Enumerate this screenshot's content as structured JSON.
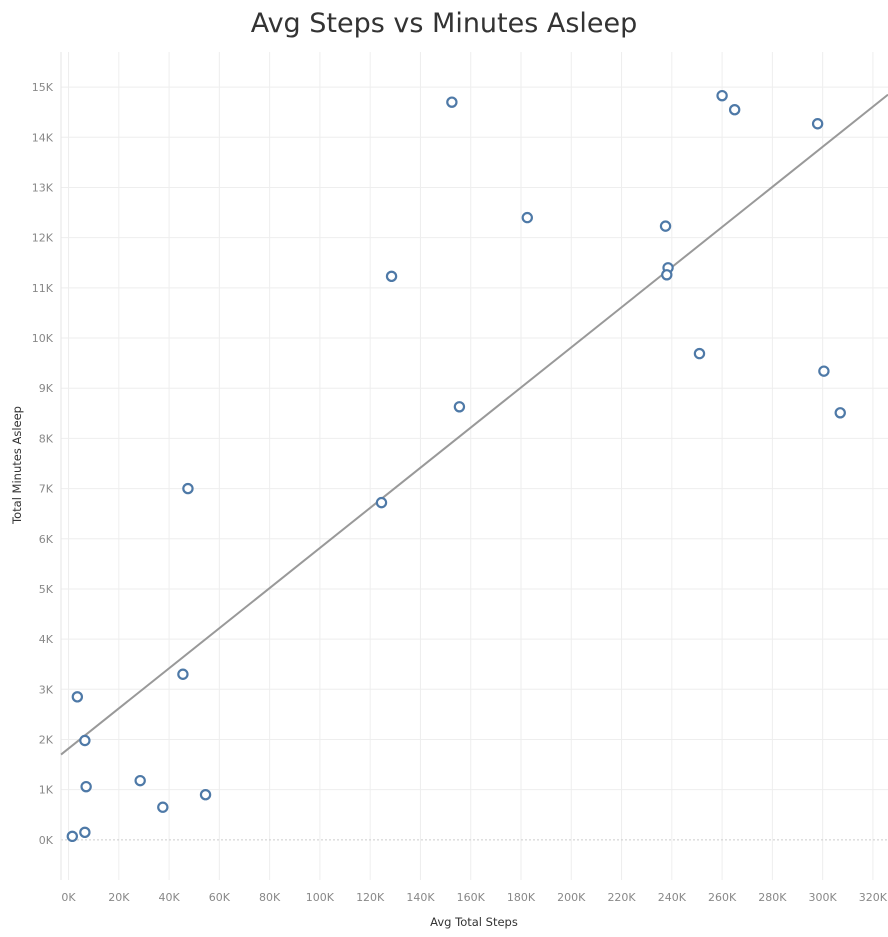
{
  "chart_data": {
    "type": "scatter",
    "title": "Avg Steps vs Minutes Asleep",
    "xlabel": "Avg Total Steps",
    "ylabel": "Total Minutes Asleep",
    "xlim": [
      -3000,
      326000
    ],
    "ylim": [
      -800,
      15700
    ],
    "x_ticks": [
      0,
      20000,
      40000,
      60000,
      80000,
      100000,
      120000,
      140000,
      160000,
      180000,
      200000,
      220000,
      240000,
      260000,
      280000,
      300000,
      320000
    ],
    "x_tick_labels": [
      "0K",
      "20K",
      "40K",
      "60K",
      "80K",
      "100K",
      "120K",
      "140K",
      "160K",
      "180K",
      "200K",
      "220K",
      "240K",
      "260K",
      "280K",
      "300K",
      "320K"
    ],
    "y_ticks": [
      0,
      1000,
      2000,
      3000,
      4000,
      5000,
      6000,
      7000,
      8000,
      9000,
      10000,
      11000,
      12000,
      13000,
      14000,
      15000
    ],
    "y_tick_labels": [
      "0K",
      "1K",
      "2K",
      "3K",
      "4K",
      "5K",
      "6K",
      "7K",
      "8K",
      "9K",
      "10K",
      "11K",
      "12K",
      "13K",
      "14K",
      "15K"
    ],
    "grid": true,
    "trend_line": {
      "x": [
        -3000,
        326000
      ],
      "y": [
        1700,
        14850
      ]
    },
    "points": [
      {
        "x": 1500,
        "y": 70
      },
      {
        "x": 6500,
        "y": 150
      },
      {
        "x": 3500,
        "y": 2850
      },
      {
        "x": 6500,
        "y": 1980
      },
      {
        "x": 7000,
        "y": 1060
      },
      {
        "x": 28500,
        "y": 1180
      },
      {
        "x": 37500,
        "y": 650
      },
      {
        "x": 45500,
        "y": 3300
      },
      {
        "x": 47500,
        "y": 7000
      },
      {
        "x": 54500,
        "y": 900
      },
      {
        "x": 124500,
        "y": 6720
      },
      {
        "x": 128500,
        "y": 11230
      },
      {
        "x": 152500,
        "y": 14700
      },
      {
        "x": 155500,
        "y": 8630
      },
      {
        "x": 182500,
        "y": 12400
      },
      {
        "x": 237500,
        "y": 12230
      },
      {
        "x": 238500,
        "y": 11400
      },
      {
        "x": 238000,
        "y": 11260
      },
      {
        "x": 251000,
        "y": 9690
      },
      {
        "x": 260000,
        "y": 14830
      },
      {
        "x": 265000,
        "y": 14550
      },
      {
        "x": 298000,
        "y": 14270
      },
      {
        "x": 300500,
        "y": 9340
      },
      {
        "x": 307000,
        "y": 8510
      }
    ],
    "colors": {
      "point": "#4e79a7",
      "trend": "#999999",
      "grid": "#eeeeee"
    }
  }
}
